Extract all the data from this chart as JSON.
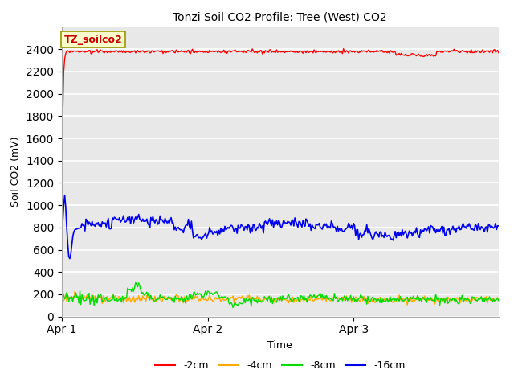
{
  "title": "Tonzi Soil CO2 Profile: Tree (West) CO2",
  "xlabel": "Time",
  "ylabel": "Soil CO2 (mV)",
  "ylim": [
    0,
    2600
  ],
  "yticks": [
    0,
    200,
    400,
    600,
    800,
    1000,
    1200,
    1400,
    1600,
    1800,
    2000,
    2200,
    2400
  ],
  "annotation_text": "TZ_soilco2",
  "annotation_color": "#cc0000",
  "annotation_bg": "#ffffcc",
  "annotation_border": "#999900",
  "bg_color": "#e8e8e8",
  "line_colors": {
    "-2cm": "#ff0000",
    "-4cm": "#ffaa00",
    "-8cm": "#00dd00",
    "-16cm": "#0000ee"
  },
  "legend_labels": [
    "-2cm",
    "-4cm",
    "-8cm",
    "-16cm"
  ],
  "x_tick_labels": [
    "Apr 1",
    "Apr 2",
    "Apr 3"
  ],
  "x_tick_positions": [
    0,
    144,
    288
  ],
  "n_points": 432
}
